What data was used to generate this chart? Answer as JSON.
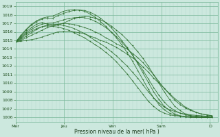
{
  "xlabel": "Pression niveau de la mer( hPa )",
  "ylim": [
    1005.5,
    1019.5
  ],
  "xlim": [
    0,
    100
  ],
  "yticks": [
    1006,
    1007,
    1008,
    1009,
    1010,
    1011,
    1012,
    1013,
    1014,
    1015,
    1016,
    1017,
    1018,
    1019
  ],
  "xtick_positions": [
    0,
    24,
    48,
    72,
    96
  ],
  "xtick_labels": [
    "Mer",
    "Jeu",
    "Ven",
    "Sam",
    "D"
  ],
  "bg_color": "#cce8de",
  "grid_minor_color": "#b0d8cc",
  "grid_major_color": "#7ab89a",
  "line_color": "#2d6e2d",
  "figsize": [
    3.2,
    2.0
  ],
  "dpi": 100,
  "series": [
    [
      1014.8,
      1014.9,
      1015.0,
      1015.1,
      1015.2,
      1015.4,
      1015.6,
      1015.8,
      1016.0,
      1016.05,
      1016.1,
      1016.0,
      1015.9,
      1015.8,
      1015.5,
      1015.3,
      1015.0,
      1014.8,
      1014.5,
      1014.2,
      1013.8,
      1013.4,
      1013.0,
      1012.5,
      1011.9,
      1011.3,
      1010.6,
      1010.0,
      1009.4,
      1008.8,
      1008.2,
      1007.7,
      1007.2,
      1006.9,
      1006.6,
      1006.4,
      1006.3,
      1006.2
    ],
    [
      1014.8,
      1015.0,
      1015.3,
      1015.6,
      1015.9,
      1016.2,
      1016.5,
      1016.7,
      1016.9,
      1017.0,
      1016.95,
      1016.85,
      1016.7,
      1016.5,
      1016.3,
      1016.0,
      1015.7,
      1015.3,
      1015.0,
      1014.6,
      1014.3,
      1014.0,
      1013.5,
      1013.0,
      1012.4,
      1011.7,
      1011.0,
      1010.2,
      1009.4,
      1008.7,
      1008.0,
      1007.5,
      1007.1,
      1006.8,
      1006.6,
      1006.4,
      1006.3,
      1006.2
    ],
    [
      1014.8,
      1015.1,
      1015.5,
      1015.9,
      1016.3,
      1016.6,
      1016.8,
      1016.9,
      1016.85,
      1016.75,
      1016.6,
      1016.4,
      1016.1,
      1015.8,
      1015.4,
      1015.0,
      1014.6,
      1014.2,
      1013.7,
      1013.2,
      1012.6,
      1012.0,
      1011.3,
      1010.6,
      1009.8,
      1009.0,
      1008.3,
      1007.7,
      1007.2,
      1006.9,
      1006.7,
      1006.5,
      1006.4,
      1006.3,
      1006.25,
      1006.2,
      1006.15,
      1006.1
    ],
    [
      1014.8,
      1015.2,
      1015.7,
      1016.1,
      1016.4,
      1016.6,
      1016.7,
      1016.65,
      1016.55,
      1016.4,
      1016.2,
      1015.9,
      1015.6,
      1015.3,
      1014.9,
      1014.5,
      1014.1,
      1013.6,
      1013.1,
      1012.5,
      1011.8,
      1011.1,
      1010.3,
      1009.5,
      1008.7,
      1007.9,
      1007.3,
      1006.8,
      1006.5,
      1006.3,
      1006.2,
      1006.15,
      1006.1,
      1006.1,
      1006.1,
      1006.1,
      1006.1,
      1006.1
    ],
    [
      1014.8,
      1015.4,
      1016.0,
      1016.5,
      1016.9,
      1017.1,
      1016.9,
      1016.7,
      1016.8,
      1017.0,
      1017.3,
      1017.55,
      1017.7,
      1017.8,
      1017.75,
      1017.6,
      1017.4,
      1017.1,
      1016.7,
      1016.2,
      1015.7,
      1015.1,
      1014.4,
      1013.7,
      1012.9,
      1012.0,
      1011.0,
      1010.0,
      1009.0,
      1008.1,
      1007.3,
      1006.8,
      1006.4,
      1006.2,
      1006.1,
      1006.0,
      1006.0,
      1006.0
    ],
    [
      1014.8,
      1015.5,
      1016.2,
      1016.8,
      1017.2,
      1017.5,
      1017.55,
      1017.6,
      1017.9,
      1018.15,
      1018.35,
      1018.5,
      1018.55,
      1018.5,
      1018.3,
      1018.0,
      1017.6,
      1017.1,
      1016.5,
      1015.8,
      1015.0,
      1014.2,
      1013.3,
      1012.3,
      1011.2,
      1010.1,
      1009.0,
      1008.1,
      1007.3,
      1006.8,
      1006.4,
      1006.2,
      1006.1,
      1006.05,
      1006.0,
      1006.0,
      1006.0,
      1006.0
    ],
    [
      1014.8,
      1015.6,
      1016.3,
      1016.9,
      1017.3,
      1017.6,
      1017.75,
      1017.85,
      1018.1,
      1018.4,
      1018.55,
      1018.6,
      1018.55,
      1018.4,
      1018.1,
      1017.7,
      1017.2,
      1016.65,
      1016.0,
      1015.3,
      1014.5,
      1013.6,
      1012.6,
      1011.5,
      1010.4,
      1009.3,
      1008.3,
      1007.5,
      1006.9,
      1006.5,
      1006.3,
      1006.15,
      1006.05,
      1006.0,
      1006.0,
      1006.0,
      1006.0,
      1006.0
    ],
    [
      1014.8,
      1015.3,
      1015.85,
      1016.3,
      1016.65,
      1016.9,
      1017.0,
      1017.05,
      1017.2,
      1017.4,
      1017.55,
      1017.65,
      1017.7,
      1017.65,
      1017.5,
      1017.25,
      1016.9,
      1016.5,
      1016.0,
      1015.45,
      1014.8,
      1014.1,
      1013.3,
      1012.45,
      1011.5,
      1010.5,
      1009.5,
      1008.6,
      1007.8,
      1007.2,
      1006.8,
      1006.5,
      1006.3,
      1006.2,
      1006.15,
      1006.1,
      1006.05,
      1006.0
    ]
  ]
}
